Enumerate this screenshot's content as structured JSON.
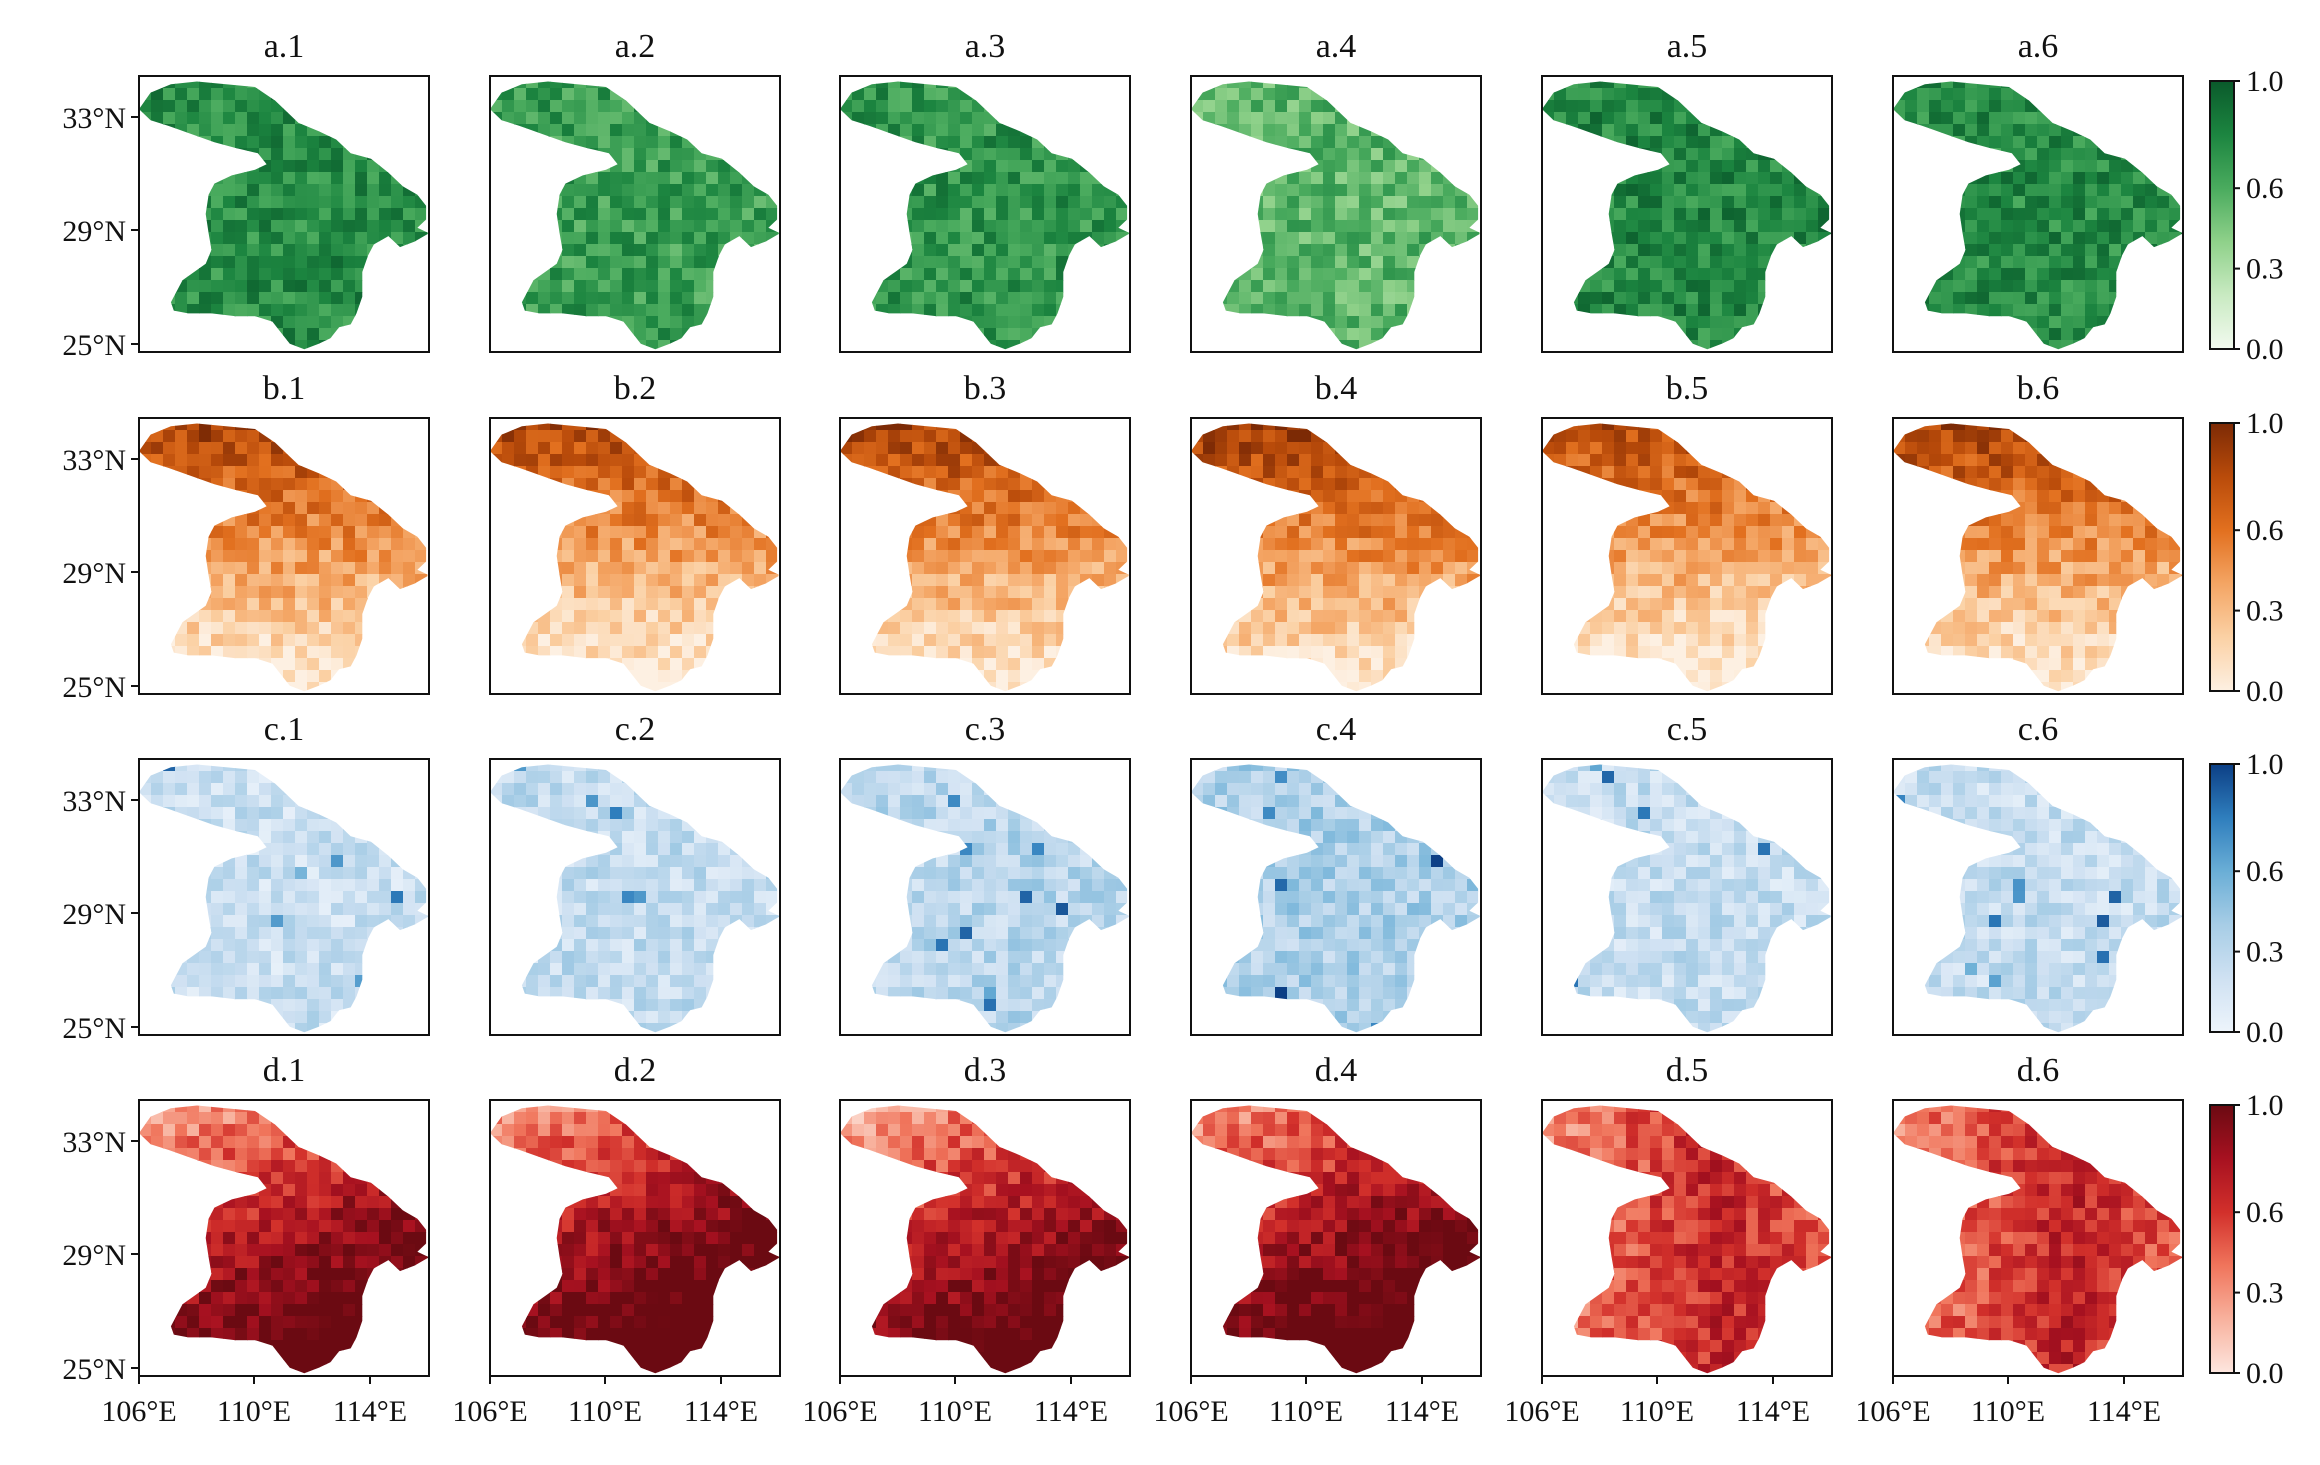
{
  "rows": [
    {
      "id": "a",
      "titles": [
        "a.1",
        "a.2",
        "a.3",
        "a.4",
        "a.5",
        "a.6"
      ],
      "palette": [
        "#f2faef",
        "#c9eac2",
        "#8fd18a",
        "#4aab5e",
        "#1c8540",
        "#0a5a2b"
      ],
      "mean_level": [
        0.76,
        0.68,
        0.72,
        0.55,
        0.78,
        0.77
      ],
      "colorbar_ticks": [
        "1.0",
        "0.6",
        "0.3",
        "0.0"
      ]
    },
    {
      "id": "b",
      "titles": [
        "b.1",
        "b.2",
        "b.3",
        "b.4",
        "b.5",
        "b.6"
      ],
      "palette": [
        "#fdf0e2",
        "#fbd1a5",
        "#f4a564",
        "#e2701f",
        "#b94b0a",
        "#7c2a05"
      ],
      "mean_level": [
        0.55,
        0.52,
        0.55,
        0.58,
        0.5,
        0.55
      ],
      "colorbar_ticks": [
        "1.0",
        "0.6",
        "0.3",
        "0.0"
      ]
    },
    {
      "id": "c",
      "titles": [
        "c.1",
        "c.2",
        "c.3",
        "c.4",
        "c.5",
        "c.6"
      ],
      "palette": [
        "#edf4fb",
        "#cfe1f2",
        "#a7cde6",
        "#6aaed6",
        "#2f7ebd",
        "#0c3f85"
      ],
      "mean_level": [
        0.22,
        0.25,
        0.3,
        0.36,
        0.24,
        0.24
      ],
      "colorbar_ticks": [
        "1.0",
        "0.6",
        "0.3",
        "0.0"
      ]
    },
    {
      "id": "d",
      "titles": [
        "d.1",
        "d.2",
        "d.3",
        "d.4",
        "d.5",
        "d.6"
      ],
      "palette": [
        "#fde6df",
        "#f8b29e",
        "#f0755c",
        "#d2302b",
        "#a71120",
        "#6b0a12"
      ],
      "mean_level": [
        0.62,
        0.68,
        0.6,
        0.66,
        0.5,
        0.52
      ],
      "colorbar_ticks": [
        "1.0",
        "0.6",
        "0.3",
        "0.0"
      ]
    }
  ],
  "lat_labels": [
    "33°N",
    "29°N",
    "25°N"
  ],
  "lon_labels": [
    "106°E",
    "110°E",
    "114°E"
  ]
}
